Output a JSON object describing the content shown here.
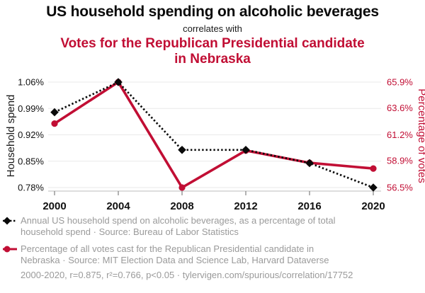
{
  "header": {
    "title": "US household spending on alcoholic beverages",
    "subtitle": "correlates with",
    "title2": "Votes for the Republican Presidential candidate in Nebraska"
  },
  "colors": {
    "accent_red": "#c10e34",
    "series_black": "#0a0a0a",
    "legend_gray": "#9a9a9a",
    "gridline": "#e9e9e9",
    "axis_line": "#c9c9c9",
    "tick_mark": "#8a8a8a"
  },
  "chart_data": {
    "type": "line",
    "x": [
      2000,
      2004,
      2008,
      2012,
      2016,
      2020
    ],
    "x_tick_labels": [
      "2000",
      "2004",
      "2008",
      "2012",
      "2016",
      "2020"
    ],
    "grid": "horizontal",
    "left_axis": {
      "label": "Household spend",
      "tick_labels": [
        "1.06%",
        "0.99%",
        "0.92%",
        "0.85%",
        "0.78%"
      ],
      "tick_values": [
        1.06,
        0.99,
        0.92,
        0.85,
        0.78
      ],
      "range": [
        0.78,
        1.06
      ],
      "color": "#111111"
    },
    "right_axis": {
      "label": "Percentage of votes",
      "tick_labels": [
        "65.9%",
        "63.6%",
        "61.2%",
        "58.9%",
        "56.5%"
      ],
      "tick_values": [
        65.9,
        63.6,
        61.2,
        58.9,
        56.5
      ],
      "range": [
        56.5,
        65.9
      ],
      "color": "#c10e34"
    },
    "series": [
      {
        "name": "Annual US household spend on alcoholic beverages, as a percentage of total household spend",
        "axis": "left",
        "style": "dotted",
        "marker": "diamond",
        "color": "#0a0a0a",
        "values": [
          0.98,
          1.06,
          0.88,
          0.88,
          0.845,
          0.78
        ]
      },
      {
        "name": "Percentage of all votes cast for the Republican Presidential candidate in Nebraska",
        "axis": "right",
        "style": "solid",
        "marker": "circle",
        "color": "#c10e34",
        "values": [
          62.2,
          65.9,
          56.5,
          59.8,
          58.7,
          58.2
        ]
      }
    ]
  },
  "legend": {
    "items": [
      {
        "label": "Annual US household spend on alcoholic beverages, as a percentage of total household spend · Source: Bureau of Labor Statistics"
      },
      {
        "label": "Percentage of all votes cast for the Republican Presidential candidate in Nebraska · Source: MIT Election Data and Science Lab, Harvard Dataverse"
      }
    ]
  },
  "footer": {
    "stats": "2000-2020, r=0.875, r²=0.766, p<0.05 · tylervigen.com/spurious/correlation/17752"
  }
}
